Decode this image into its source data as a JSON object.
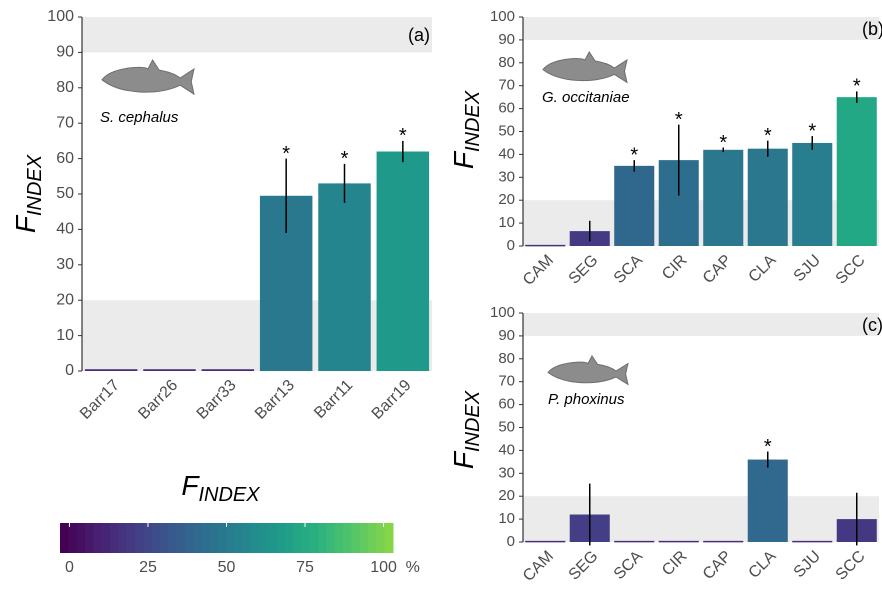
{
  "chart_data": [
    {
      "type": "bar",
      "panel_label": "(a)",
      "species": "S. cephalus",
      "y_label": "F",
      "y_label_sub": "INDEX",
      "categories": [
        "Barr17",
        "Barr26",
        "Barr33",
        "Barr13",
        "Barr11",
        "Barr19"
      ],
      "values": [
        0.5,
        0.5,
        0.5,
        49.5,
        53,
        62
      ],
      "errors": [
        null,
        null,
        null,
        10.5,
        5.5,
        3
      ],
      "significant": [
        false,
        false,
        false,
        true,
        true,
        true
      ],
      "marker": "*",
      "colors": [
        "#472d7b",
        "#472d7b",
        "#472d7b",
        "#2a788e",
        "#25858e",
        "#1f9a8a"
      ],
      "ylim": [
        0,
        100
      ],
      "yticks": [
        0,
        10,
        20,
        30,
        40,
        50,
        60,
        70,
        80,
        90,
        100
      ],
      "bands": [
        [
          0,
          20
        ],
        [
          90,
          100
        ]
      ],
      "band_color": "#ebebeb"
    },
    {
      "type": "bar",
      "panel_label": "(b)",
      "species": "G. occitaniae",
      "y_label": "F",
      "y_label_sub": "INDEX",
      "categories": [
        "CAM",
        "SEG",
        "SCA",
        "CIR",
        "CAP",
        "CLA",
        "SJU",
        "SCC"
      ],
      "values": [
        0.5,
        6.5,
        35,
        37.5,
        42,
        42.5,
        45,
        65
      ],
      "errors": [
        null,
        4.5,
        2.5,
        15.5,
        1,
        3.5,
        3,
        2.5
      ],
      "significant": [
        false,
        false,
        true,
        true,
        true,
        true,
        true,
        true
      ],
      "marker": "*",
      "colors": [
        "#46337e",
        "#443a83",
        "#30678d",
        "#2d6e8e",
        "#2a778e",
        "#2a778e",
        "#287d8e",
        "#22a884"
      ],
      "ylim": [
        0,
        100
      ],
      "yticks": [
        0,
        10,
        20,
        30,
        40,
        50,
        60,
        70,
        80,
        90,
        100
      ],
      "bands": [
        [
          0,
          20
        ],
        [
          90,
          100
        ]
      ],
      "band_color": "#ebebeb"
    },
    {
      "type": "bar",
      "panel_label": "(c)",
      "species": "P. phoxinus",
      "y_label": "F",
      "y_label_sub": "INDEX",
      "categories": [
        "CAM",
        "SEG",
        "SCA",
        "CIR",
        "CAP",
        "CLA",
        "SJU",
        "SCC"
      ],
      "values": [
        0.5,
        12,
        0.5,
        0.5,
        0.5,
        36,
        0.5,
        10
      ],
      "errors": [
        null,
        13.5,
        null,
        null,
        null,
        3.5,
        null,
        11.5
      ],
      "significant": [
        false,
        false,
        false,
        false,
        false,
        true,
        false,
        false
      ],
      "marker": "*",
      "colors": [
        "#472d7b",
        "#433e85",
        "#472d7b",
        "#472d7b",
        "#472d7b",
        "#31688e",
        "#472d7b",
        "#453882"
      ],
      "ylim": [
        0,
        100
      ],
      "yticks": [
        0,
        10,
        20,
        30,
        40,
        50,
        60,
        70,
        80,
        90,
        100
      ],
      "bands": [
        [
          0,
          20
        ],
        [
          90,
          100
        ]
      ],
      "band_color": "#ebebeb"
    },
    {
      "type": "colorbar",
      "title": "F",
      "title_sub": "INDEX",
      "lim": [
        -3,
        103
      ],
      "ticks": [
        0,
        25,
        50,
        75,
        100
      ],
      "unit": "%",
      "palette": [
        "#440154",
        "#482173",
        "#433e85",
        "#38598c",
        "#2d708e",
        "#25858e",
        "#1e9b8a",
        "#2ab07f",
        "#52c569",
        "#86d549"
      ]
    }
  ]
}
